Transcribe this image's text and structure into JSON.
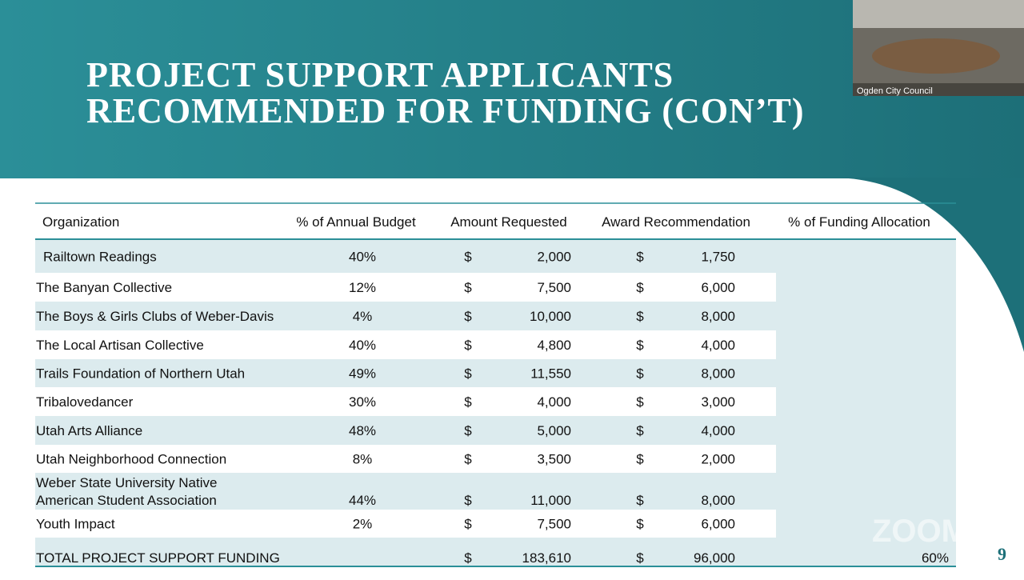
{
  "slide": {
    "title_lines": [
      "PROJECT SUPPORT APPLICANTS",
      "RECOMMENDED FOR FUNDING (CON’T)"
    ],
    "table": {
      "header": [
        "Organization",
        "% of Annual Budget",
        "Amount Requested",
        "Award Recommendation",
        "% of Funding Allocation"
      ],
      "rows": [
        [
          "Railtown Readings",
          "40%",
          "$",
          "2,000",
          "$",
          "1,750"
        ],
        [
          "The Banyan Collective",
          "12%",
          "$",
          "7,500",
          "$",
          "6,000"
        ],
        [
          "The Boys & Girls Clubs of Weber-Davis",
          "4%",
          "$",
          "10,000",
          "$",
          "8,000"
        ],
        [
          "The Local Artisan Collective",
          "40%",
          "$",
          "4,800",
          "$",
          "4,000"
        ],
        [
          "Trails Foundation of Northern Utah",
          "49%",
          "$",
          "11,550",
          "$",
          "8,000"
        ],
        [
          "Tribalovedancer",
          "30%",
          "$",
          "4,000",
          "$",
          "3,000"
        ],
        [
          "Utah Arts Alliance",
          "48%",
          "$",
          "5,000",
          "$",
          "4,000"
        ],
        [
          "Utah Neighborhood Connection",
          "8%",
          "$",
          "3,500",
          "$",
          "2,000"
        ],
        [
          [
            "Weber State University Native",
            "American Student Association"
          ],
          "44%",
          "$",
          "11,000",
          "$",
          "8,000"
        ],
        [
          "Youth Impact",
          "2%",
          "$",
          "7,500",
          "$",
          "6,000"
        ]
      ],
      "total": {
        "label": "TOTAL PROJECT SUPPORT FUNDING",
        "currency_requested": "$",
        "requested": "183,610",
        "currency_award": "$",
        "award": "96,000",
        "allocation": "60%"
      }
    },
    "page_number": "9",
    "watermark": "ZOOM"
  },
  "video": {
    "label": "Ogden City Council"
  }
}
